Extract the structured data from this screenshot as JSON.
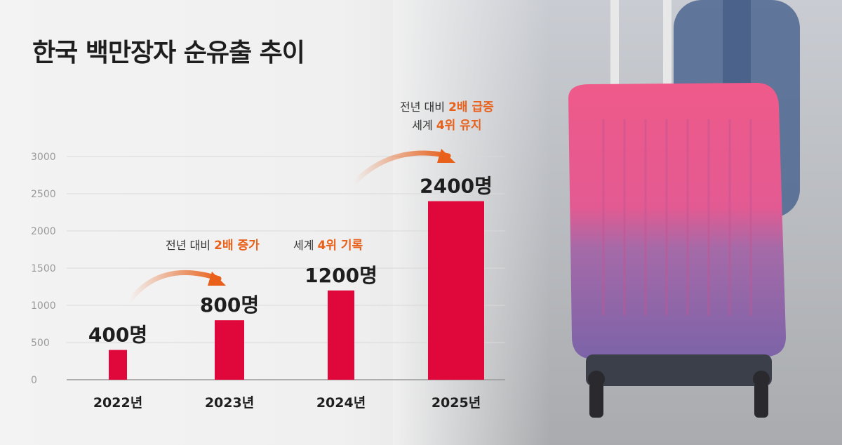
{
  "title": "한국 백만장자 순유출 추이",
  "colors": {
    "bar": "#e0083a",
    "accent": "#e8601a",
    "text": "#1e1e1e",
    "grid": "#d9d9d9"
  },
  "annotations": {
    "a2023": {
      "plain": "전년 대비 ",
      "hl": "2배 증가"
    },
    "a2024": {
      "plain": "세계 ",
      "hl": "4위 기록"
    },
    "a2025_1": {
      "plain": "전년 대비 ",
      "hl": "2배 급증"
    },
    "a2025_2": {
      "plain": "세계 ",
      "hl": "4위 유지"
    }
  },
  "chart_data": {
    "type": "bar",
    "title": "한국 백만장자 순유출 추이",
    "categories": [
      "2022년",
      "2023년",
      "2024년",
      "2025년"
    ],
    "values": [
      400,
      800,
      1200,
      2400
    ],
    "value_labels": [
      "400명",
      "800명",
      "1200명",
      "2400명"
    ],
    "ylim": [
      0,
      3000
    ],
    "yticks": [
      0,
      500,
      1000,
      1500,
      2000,
      2500,
      3000
    ],
    "grid": true,
    "xlabel": "",
    "ylabel": ""
  }
}
